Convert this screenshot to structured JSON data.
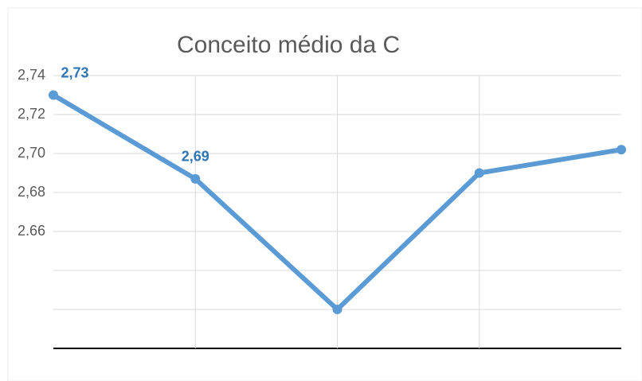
{
  "chart_data": {
    "type": "line",
    "title": "Conceito médio da C",
    "categories": [
      null,
      null,
      null,
      null,
      null
    ],
    "series": [
      {
        "color": "#5b9bd5",
        "values": [
          2.73,
          2.687,
          2.62,
          2.69,
          2.702
        ],
        "value_labels": [
          "2,73",
          "2,69",
          null,
          null,
          null
        ],
        "label_color": "#2e75b6"
      }
    ],
    "ylim": [
      2.6,
      2.74
    ],
    "yticks": [
      {
        "value": 2.6,
        "label": null
      },
      {
        "value": 2.62,
        "label": null
      },
      {
        "value": 2.64,
        "label": null
      },
      {
        "value": 2.66,
        "label": "2.66"
      },
      {
        "value": 2.68,
        "label": "2,68"
      },
      {
        "value": 2.7,
        "label": "2,70"
      },
      {
        "value": 2.72,
        "label": "2,72"
      },
      {
        "value": 2.74,
        "label": "2,74"
      }
    ],
    "grid": true
  }
}
